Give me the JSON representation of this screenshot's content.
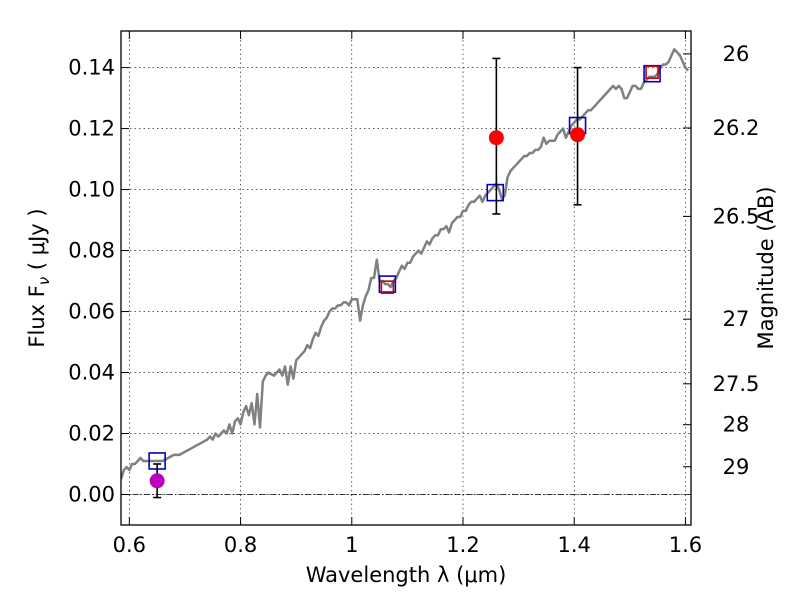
{
  "chart_data": {
    "type": "scatter",
    "xlabel": "Wavelength  λ (μm)",
    "ylabel": "Flux  F",
    "ylabel_sub": "ν",
    "ylabel_unit": "  ( μJy )",
    "y2label": "Magnitude (AB)",
    "xlim": [
      0.585,
      1.61
    ],
    "ylim": [
      -0.01,
      0.152
    ],
    "grid": true,
    "x_ticks": [
      {
        "value": 0.6,
        "label": "0.6"
      },
      {
        "value": 0.8,
        "label": "0.8"
      },
      {
        "value": 1.0,
        "label": "1"
      },
      {
        "value": 1.2,
        "label": "1.2"
      },
      {
        "value": 1.4,
        "label": "1.4"
      },
      {
        "value": 1.6,
        "label": "1.6"
      }
    ],
    "y_ticks": [
      {
        "value": 0.0,
        "label": "0.00"
      },
      {
        "value": 0.02,
        "label": "0.02"
      },
      {
        "value": 0.04,
        "label": "0.04"
      },
      {
        "value": 0.06,
        "label": "0.06"
      },
      {
        "value": 0.08,
        "label": "0.08"
      },
      {
        "value": 0.1,
        "label": "0.10"
      },
      {
        "value": 0.12,
        "label": "0.12"
      },
      {
        "value": 0.14,
        "label": "0.14"
      }
    ],
    "y2_ticks": [
      {
        "flux": 0.1445,
        "label": "26"
      },
      {
        "flux": 0.1202,
        "label": "26.2"
      },
      {
        "flux": 0.0912,
        "label": "26.5"
      },
      {
        "flux": 0.0575,
        "label": "27"
      },
      {
        "flux": 0.0363,
        "label": "27.5"
      },
      {
        "flux": 0.0229,
        "label": "28"
      },
      {
        "flux": 0.0091,
        "label": "29"
      }
    ],
    "series": [
      {
        "kind": "line",
        "color": "#808080",
        "points": [
          [
            0.585,
            0.005
          ],
          [
            0.59,
            0.008
          ],
          [
            0.595,
            0.009
          ],
          [
            0.6,
            0.008
          ],
          [
            0.605,
            0.01
          ],
          [
            0.61,
            0.01
          ],
          [
            0.615,
            0.011
          ],
          [
            0.62,
            0.012
          ],
          [
            0.625,
            0.011
          ],
          [
            0.63,
            0.011
          ],
          [
            0.635,
            0.011
          ],
          [
            0.64,
            0.011
          ],
          [
            0.65,
            0.011
          ],
          [
            0.66,
            0.011
          ],
          [
            0.67,
            0.012
          ],
          [
            0.68,
            0.013
          ],
          [
            0.69,
            0.013
          ],
          [
            0.7,
            0.014
          ],
          [
            0.71,
            0.015
          ],
          [
            0.72,
            0.016
          ],
          [
            0.73,
            0.017
          ],
          [
            0.74,
            0.018
          ],
          [
            0.745,
            0.019
          ],
          [
            0.75,
            0.018
          ],
          [
            0.755,
            0.02
          ],
          [
            0.76,
            0.019
          ],
          [
            0.77,
            0.021
          ],
          [
            0.775,
            0.02
          ],
          [
            0.78,
            0.023
          ],
          [
            0.785,
            0.02
          ],
          [
            0.79,
            0.024
          ],
          [
            0.795,
            0.025
          ],
          [
            0.8,
            0.023
          ],
          [
            0.805,
            0.027
          ],
          [
            0.81,
            0.029
          ],
          [
            0.815,
            0.026
          ],
          [
            0.82,
            0.03
          ],
          [
            0.825,
            0.023
          ],
          [
            0.83,
            0.033
          ],
          [
            0.835,
            0.022
          ],
          [
            0.84,
            0.037
          ],
          [
            0.845,
            0.039
          ],
          [
            0.85,
            0.04
          ],
          [
            0.86,
            0.039
          ],
          [
            0.87,
            0.041
          ],
          [
            0.875,
            0.039
          ],
          [
            0.88,
            0.042
          ],
          [
            0.885,
            0.036
          ],
          [
            0.89,
            0.042
          ],
          [
            0.895,
            0.038
          ],
          [
            0.9,
            0.044
          ],
          [
            0.91,
            0.046
          ],
          [
            0.915,
            0.047
          ],
          [
            0.92,
            0.049
          ],
          [
            0.925,
            0.048
          ],
          [
            0.93,
            0.051
          ],
          [
            0.935,
            0.053
          ],
          [
            0.94,
            0.052
          ],
          [
            0.945,
            0.055
          ],
          [
            0.95,
            0.057
          ],
          [
            0.955,
            0.058
          ],
          [
            0.96,
            0.06
          ],
          [
            0.965,
            0.061
          ],
          [
            0.97,
            0.061
          ],
          [
            0.975,
            0.062
          ],
          [
            0.98,
            0.062
          ],
          [
            0.985,
            0.063
          ],
          [
            0.99,
            0.063
          ],
          [
            0.995,
            0.062
          ],
          [
            1.0,
            0.064
          ],
          [
            1.005,
            0.064
          ],
          [
            1.01,
            0.064
          ],
          [
            1.015,
            0.057
          ],
          [
            1.02,
            0.062
          ],
          [
            1.025,
            0.065
          ],
          [
            1.03,
            0.067
          ],
          [
            1.035,
            0.071
          ],
          [
            1.04,
            0.071
          ],
          [
            1.045,
            0.077
          ],
          [
            1.05,
            0.07
          ],
          [
            1.055,
            0.07
          ],
          [
            1.06,
            0.069
          ],
          [
            1.065,
            0.069
          ],
          [
            1.07,
            0.068
          ],
          [
            1.075,
            0.07
          ],
          [
            1.08,
            0.071
          ],
          [
            1.085,
            0.073
          ],
          [
            1.09,
            0.075
          ],
          [
            1.095,
            0.074
          ],
          [
            1.1,
            0.076
          ],
          [
            1.105,
            0.076
          ],
          [
            1.11,
            0.078
          ],
          [
            1.115,
            0.079
          ],
          [
            1.12,
            0.08
          ],
          [
            1.125,
            0.079
          ],
          [
            1.13,
            0.081
          ],
          [
            1.135,
            0.083
          ],
          [
            1.14,
            0.082
          ],
          [
            1.145,
            0.084
          ],
          [
            1.15,
            0.085
          ],
          [
            1.155,
            0.085
          ],
          [
            1.16,
            0.087
          ],
          [
            1.165,
            0.087
          ],
          [
            1.17,
            0.088
          ],
          [
            1.175,
            0.086
          ],
          [
            1.18,
            0.089
          ],
          [
            1.185,
            0.09
          ],
          [
            1.19,
            0.091
          ],
          [
            1.195,
            0.091
          ],
          [
            1.2,
            0.093
          ],
          [
            1.205,
            0.093
          ],
          [
            1.21,
            0.095
          ],
          [
            1.215,
            0.096
          ],
          [
            1.22,
            0.096
          ],
          [
            1.225,
            0.097
          ],
          [
            1.23,
            0.098
          ],
          [
            1.235,
            0.096
          ],
          [
            1.24,
            0.098
          ],
          [
            1.245,
            0.099
          ],
          [
            1.25,
            0.1
          ],
          [
            1.255,
            0.101
          ],
          [
            1.26,
            0.102
          ],
          [
            1.265,
            0.1
          ],
          [
            1.27,
            0.097
          ],
          [
            1.275,
            0.098
          ],
          [
            1.28,
            0.104
          ],
          [
            1.285,
            0.106
          ],
          [
            1.29,
            0.107
          ],
          [
            1.295,
            0.108
          ],
          [
            1.3,
            0.109
          ],
          [
            1.305,
            0.11
          ],
          [
            1.31,
            0.111
          ],
          [
            1.315,
            0.111
          ],
          [
            1.32,
            0.112
          ],
          [
            1.325,
            0.112
          ],
          [
            1.33,
            0.113
          ],
          [
            1.335,
            0.113
          ],
          [
            1.34,
            0.114
          ],
          [
            1.345,
            0.117
          ],
          [
            1.35,
            0.115
          ],
          [
            1.355,
            0.116
          ],
          [
            1.36,
            0.116
          ],
          [
            1.365,
            0.116
          ],
          [
            1.37,
            0.118
          ],
          [
            1.375,
            0.119
          ],
          [
            1.38,
            0.12
          ],
          [
            1.385,
            0.117
          ],
          [
            1.39,
            0.119
          ],
          [
            1.395,
            0.121
          ],
          [
            1.4,
            0.122
          ],
          [
            1.405,
            0.123
          ],
          [
            1.41,
            0.123
          ],
          [
            1.415,
            0.124
          ],
          [
            1.42,
            0.125
          ],
          [
            1.425,
            0.126
          ],
          [
            1.43,
            0.126
          ],
          [
            1.435,
            0.127
          ],
          [
            1.44,
            0.128
          ],
          [
            1.445,
            0.129
          ],
          [
            1.45,
            0.13
          ],
          [
            1.455,
            0.131
          ],
          [
            1.46,
            0.132
          ],
          [
            1.465,
            0.133
          ],
          [
            1.47,
            0.134
          ],
          [
            1.475,
            0.133
          ],
          [
            1.48,
            0.134
          ],
          [
            1.485,
            0.133
          ],
          [
            1.49,
            0.13
          ],
          [
            1.495,
            0.13
          ],
          [
            1.5,
            0.132
          ],
          [
            1.505,
            0.134
          ],
          [
            1.51,
            0.134
          ],
          [
            1.515,
            0.133
          ],
          [
            1.52,
            0.133
          ],
          [
            1.525,
            0.135
          ],
          [
            1.53,
            0.136
          ],
          [
            1.535,
            0.137
          ],
          [
            1.54,
            0.137
          ],
          [
            1.545,
            0.137
          ],
          [
            1.55,
            0.138
          ],
          [
            1.555,
            0.14
          ],
          [
            1.56,
            0.141
          ],
          [
            1.565,
            0.141
          ],
          [
            1.57,
            0.142
          ],
          [
            1.575,
            0.144
          ],
          [
            1.58,
            0.146
          ],
          [
            1.585,
            0.145
          ],
          [
            1.59,
            0.144
          ],
          [
            1.595,
            0.142
          ],
          [
            1.6,
            0.14
          ],
          [
            1.605,
            0.139
          ]
        ]
      },
      {
        "kind": "open-square",
        "color": "#0000cc",
        "points": [
          [
            0.65,
            0.011
          ],
          [
            1.064,
            0.069
          ],
          [
            1.258,
            0.099
          ],
          [
            1.406,
            0.121
          ],
          [
            1.54,
            0.138
          ]
        ]
      },
      {
        "kind": "open-square",
        "color": "#cc0000",
        "points": [
          [
            1.064,
            0.068
          ],
          [
            1.54,
            0.1385
          ]
        ]
      },
      {
        "kind": "errorbar-point",
        "color": "#ff0000",
        "points": [
          {
            "x": 1.26,
            "y": 0.117,
            "yerr": [
              0.025,
              0.026
            ]
          },
          {
            "x": 1.406,
            "y": 0.118,
            "yerr": [
              0.023,
              0.022
            ]
          }
        ]
      },
      {
        "kind": "errorbar-point",
        "color": "#bb00bb",
        "points": [
          {
            "x": 0.65,
            "y": 0.0045,
            "yerr": [
              0.0055,
              0.0055
            ]
          }
        ]
      }
    ]
  }
}
